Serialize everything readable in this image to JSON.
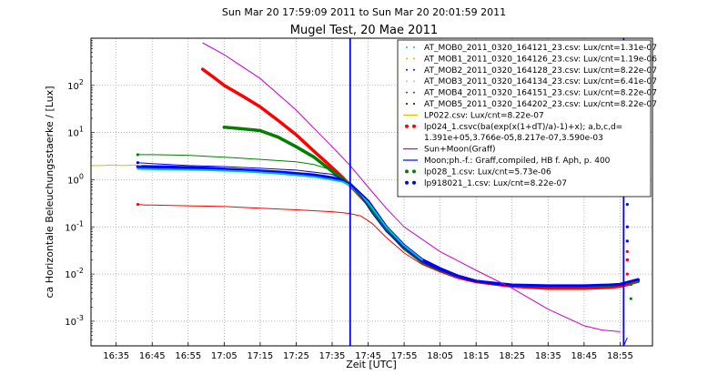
{
  "chart_data": {
    "type": "line",
    "suptitle": "Sun Mar 20 17:59:09 2011 to Sun Mar 20 20:01:59 2011",
    "title": "Mugel Test, 20 Mae 2011",
    "xlabel": "Zeit [UTC]",
    "ylabel": "ca Horizontale Beleuchungsstaerke / [Lux]",
    "y_scale": "log",
    "xlim": [
      "16:28",
      "19:04"
    ],
    "ylim": [
      0.0003,
      1000
    ],
    "grid": true,
    "legend_position": "top-right",
    "x_ticks": [
      "16:35",
      "16:45",
      "16:55",
      "17:05",
      "17:15",
      "17:25",
      "17:35",
      "17:45",
      "17:55",
      "18:05",
      "18:15",
      "18:25",
      "18:35",
      "18:45",
      "18:55"
    ],
    "y_ticks": [
      {
        "value": 0.001,
        "mantissa": "10",
        "exp": "-3"
      },
      {
        "value": 0.01,
        "mantissa": "10",
        "exp": "-2"
      },
      {
        "value": 0.1,
        "mantissa": "10",
        "exp": "-1"
      },
      {
        "value": 1,
        "mantissa": "10",
        "exp": "0"
      },
      {
        "value": 10,
        "mantissa": "10",
        "exp": "1"
      },
      {
        "value": 100,
        "mantissa": "10",
        "exp": "2"
      }
    ],
    "vertical_lines": [
      "17:40",
      "18:56"
    ],
    "series": [
      {
        "name": "AT_MOB0_2011_0320_164121_23.csv: Lux/cnt=1.31e-07",
        "color": "#00bfbf",
        "style": "dots",
        "x": [],
        "y": []
      },
      {
        "name": "AT_MOB1_2011_0320_164126_23.csv: Lux/cnt=1.19e-06",
        "color": "#bfbf00",
        "style": "dots",
        "x": [],
        "y": []
      },
      {
        "name": "AT_MOB2_2011_0320_164128_23.csv: Lux/cnt=8.22e-07",
        "color": "#0000ff",
        "style": "dots",
        "x": [],
        "y": []
      },
      {
        "name": "AT_MOB3_2011_0320_164134_23.csv: Lux/cnt=6.41e-07",
        "color": "#c0c0c0",
        "style": "dots",
        "x": [],
        "y": []
      },
      {
        "name": "AT_MOB4_2011_0320_164151_23.csv: Lux/cnt=8.22e-07",
        "color": "#008000",
        "style": "dots",
        "x": [],
        "y": []
      },
      {
        "name": "AT_MOB5_2011_0320_164202_23.csv: Lux/cnt=8.22e-07",
        "color": "#000000",
        "style": "dots",
        "x": [],
        "y": []
      },
      {
        "name": "LP022.csv: Lux/cnt=8.22e-07",
        "color": "#d4c400",
        "style": "line",
        "width": 1,
        "x": [
          "16:28",
          "16:31",
          "16:34",
          "16:37",
          "16:40",
          "16:42"
        ],
        "y": [
          2.0,
          2.0,
          2.05,
          2.0,
          2.05,
          2.0
        ]
      },
      {
        "name": "lp024_1.csvc(ba(exp(x(1+dT)/a)-1)+x); a,b,c,d=",
        "name2": "1.391e+05,3.766e-05,8.217e-07,3.590e-03",
        "color": "#ff0000",
        "style": "line",
        "width": 1,
        "marker": "dot",
        "x": [
          "16:41",
          "16:43",
          "16:45",
          "16:55",
          "17:05",
          "17:15",
          "17:25",
          "17:35",
          "17:38",
          "17:40",
          "17:43",
          "17:46",
          "17:50",
          "17:55",
          "18:00",
          "18:05",
          "18:10",
          "18:15",
          "18:20",
          "18:25",
          "18:35",
          "18:45",
          "18:52",
          "18:55",
          "18:57",
          "19:00"
        ],
        "y": [
          0.3,
          0.29,
          0.29,
          0.28,
          0.27,
          0.25,
          0.23,
          0.21,
          0.2,
          0.19,
          0.17,
          0.12,
          0.06,
          0.028,
          0.016,
          0.011,
          0.008,
          0.0065,
          0.0058,
          0.0053,
          0.005,
          0.005,
          0.0052,
          0.0055,
          0.006,
          0.007
        ]
      },
      {
        "name": "Sun+Moon(Graff)",
        "color": "#cc00cc",
        "style": "line",
        "width": 1,
        "x": [
          "16:59",
          "17:05",
          "17:15",
          "17:25",
          "17:35",
          "17:40",
          "17:45",
          "17:50",
          "17:55",
          "18:05",
          "18:15",
          "18:25",
          "18:35",
          "18:45",
          "18:50",
          "18:55"
        ],
        "y": [
          800,
          450,
          140,
          30,
          5,
          2,
          0.7,
          0.25,
          0.1,
          0.03,
          0.012,
          0.005,
          0.0018,
          0.0008,
          0.00065,
          0.0006
        ]
      },
      {
        "name": "Moon;ph.-f.: Graff,compiled, HB f. Aph, p. 400",
        "color": "#0000ff",
        "style": "line",
        "width": 1,
        "x": [
          "18:56",
          "18:57"
        ],
        "y": [
          0.0003,
          0.00045
        ]
      },
      {
        "name": "lp028_1.csv: Lux/cnt=5.73e-06",
        "color": "#008000",
        "style": "line",
        "width": 1,
        "marker": "dot",
        "x": [
          "16:41",
          "16:45",
          "16:55",
          "17:05",
          "17:15",
          "17:25",
          "17:30",
          "17:35",
          "17:38",
          "17:40",
          "17:43",
          "17:46",
          "17:50",
          "17:55",
          "18:00",
          "18:05",
          "18:10",
          "18:15",
          "18:20",
          "18:25",
          "18:35",
          "18:45",
          "18:52",
          "18:55",
          "18:57",
          "19:00"
        ],
        "y": [
          3.4,
          3.4,
          3.3,
          3.0,
          2.7,
          2.4,
          2.1,
          1.6,
          1.1,
          0.8,
          0.45,
          0.2,
          0.08,
          0.035,
          0.018,
          0.012,
          0.009,
          0.007,
          0.006,
          0.0056,
          0.0054,
          0.0054,
          0.0055,
          0.006,
          0.0065,
          0.007
        ]
      },
      {
        "name": "lp918021_1.csv: Lux/cnt=8.22e-07",
        "color": "#0000ff",
        "style": "line",
        "width": 1,
        "marker": "dot",
        "x": [
          "16:41",
          "16:45",
          "16:55",
          "17:05",
          "17:15",
          "17:25",
          "17:35",
          "17:38",
          "17:40",
          "17:43",
          "17:46",
          "17:50",
          "17:55",
          "18:00",
          "18:05",
          "18:10",
          "18:15",
          "18:20",
          "18:25",
          "18:35",
          "18:45",
          "18:52",
          "18:55",
          "18:57",
          "19:00"
        ],
        "y": [
          2.3,
          2.2,
          2.0,
          1.9,
          1.75,
          1.6,
          1.3,
          1.0,
          0.8,
          0.45,
          0.2,
          0.08,
          0.035,
          0.018,
          0.012,
          0.009,
          0.007,
          0.006,
          0.0056,
          0.0055,
          0.0055,
          0.0057,
          0.006,
          0.0065,
          0.0075
        ]
      }
    ],
    "extra_traces": [
      {
        "color": "#ff0000",
        "width": 3.5,
        "x": [
          "16:59",
          "17:02",
          "17:05",
          "17:10",
          "17:15",
          "17:20",
          "17:25",
          "17:30",
          "17:35",
          "17:38",
          "17:40",
          "17:45",
          "17:50",
          "17:55",
          "18:00",
          "18:05",
          "18:10",
          "18:15",
          "18:25",
          "18:35",
          "18:45",
          "18:52",
          "18:55",
          "18:57",
          "19:00"
        ],
        "y": [
          220,
          150,
          100,
          60,
          35,
          18,
          9,
          4,
          1.8,
          1.1,
          0.75,
          0.3,
          0.09,
          0.035,
          0.018,
          0.012,
          0.009,
          0.007,
          0.0055,
          0.005,
          0.005,
          0.0052,
          0.0055,
          0.006,
          0.007
        ]
      },
      {
        "color": "#008000",
        "width": 3.5,
        "x": [
          "17:05",
          "17:10",
          "17:15",
          "17:20",
          "17:25",
          "17:30",
          "17:35",
          "17:38",
          "17:40",
          "17:45",
          "17:50",
          "17:55",
          "18:00",
          "18:05",
          "18:10",
          "18:15",
          "18:25",
          "18:35",
          "18:45",
          "18:52",
          "18:55",
          "18:57",
          "19:00"
        ],
        "y": [
          13,
          12,
          11,
          8,
          5,
          3,
          1.5,
          1.0,
          0.8,
          0.3,
          0.09,
          0.035,
          0.018,
          0.012,
          0.009,
          0.007,
          0.0056,
          0.0055,
          0.0055,
          0.0057,
          0.006,
          0.0065,
          0.007
        ]
      },
      {
        "color": "#0000ff",
        "width": 3.5,
        "x": [
          "16:41",
          "16:50",
          "17:00",
          "17:10",
          "17:20",
          "17:30",
          "17:35",
          "17:38",
          "17:40",
          "17:45",
          "17:50",
          "17:55",
          "18:00",
          "18:05",
          "18:10",
          "18:15",
          "18:25",
          "18:35",
          "18:45",
          "18:52",
          "18:55",
          "18:57",
          "19:00"
        ],
        "y": [
          1.9,
          1.85,
          1.75,
          1.6,
          1.45,
          1.25,
          1.1,
          0.95,
          0.8,
          0.35,
          0.1,
          0.04,
          0.02,
          0.013,
          0.009,
          0.007,
          0.0058,
          0.0056,
          0.0056,
          0.0058,
          0.006,
          0.0066,
          0.0076
        ]
      },
      {
        "color": "#00bfbf",
        "width": 2,
        "x": [
          "16:41",
          "16:50",
          "17:00",
          "17:10",
          "17:20",
          "17:30",
          "17:35",
          "17:38",
          "17:40",
          "17:45",
          "17:50",
          "17:55",
          "18:00"
        ],
        "y": [
          1.7,
          1.65,
          1.6,
          1.5,
          1.35,
          1.15,
          1.0,
          0.9,
          0.75,
          0.33,
          0.1,
          0.04,
          0.02
        ]
      }
    ],
    "spikes": [
      {
        "color": "#0000ff",
        "x": "18:57",
        "y": [
          0.006,
          0.02,
          0.05,
          0.1,
          0.3,
          0.6,
          1.0
        ]
      },
      {
        "color": "#ff0000",
        "x": "18:57",
        "y": [
          0.006,
          0.01,
          0.02,
          0.03
        ]
      },
      {
        "color": "#008000",
        "x": "18:58",
        "y": [
          0.003,
          0.006
        ]
      }
    ]
  }
}
